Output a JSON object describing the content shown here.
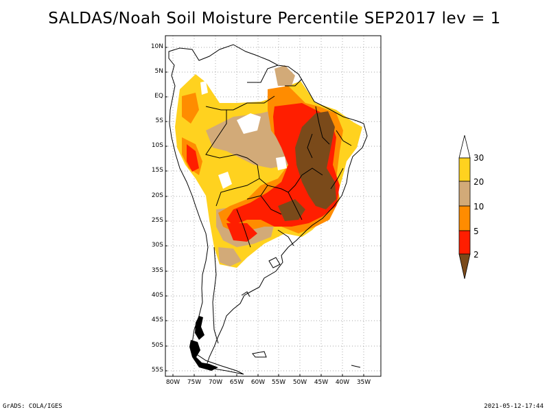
{
  "title": "SALDAS/Noah Soil Moisture Percentile SEP2017 lev = 1",
  "axes": {
    "lat_labels": [
      "10N",
      "5N",
      "EQ",
      "5S",
      "10S",
      "15S",
      "20S",
      "25S",
      "30S",
      "35S",
      "40S",
      "45S",
      "50S",
      "55S"
    ],
    "lon_labels": [
      "80W",
      "75W",
      "70W",
      "65W",
      "60W",
      "55W",
      "50W",
      "45W",
      "40W",
      "35W"
    ]
  },
  "legend": {
    "labels": [
      "30",
      "20",
      "10",
      "5",
      "2"
    ],
    "colors": {
      "above_30": "#ffffff",
      "20_30": "#ffd21f",
      "10_20": "#d2aa78",
      "5_10": "#ff8c00",
      "2_5": "#ff1e00",
      "below_2": "#7a4a1a"
    }
  },
  "footer": {
    "left": "GrADS: COLA/IGES",
    "right": "2021-05-12-17:44"
  }
}
